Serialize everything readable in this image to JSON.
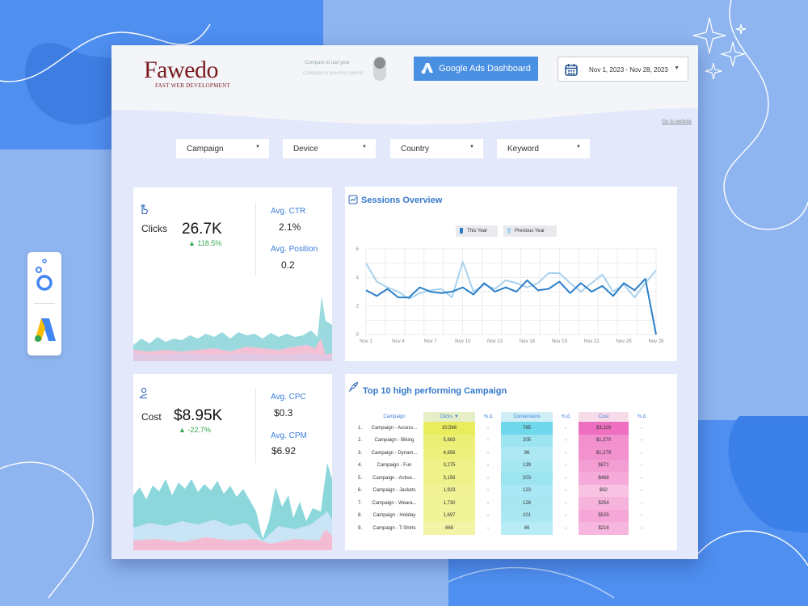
{
  "brand": {
    "name": "Fawedo",
    "tagline": "FAST WEB DEVELOPMENT"
  },
  "header": {
    "toggle_primary_label": "Compare to last year",
    "toggle_secondary_label": "Compare to previous period",
    "ads_button_label": "Google Ads Dashboard",
    "date_range": "Nov 1, 2023 - Nov 28, 2023",
    "go_to_website": "Go to website"
  },
  "filters": [
    {
      "label": "Campaign"
    },
    {
      "label": "Device"
    },
    {
      "label": "Country"
    },
    {
      "label": "Keyword"
    }
  ],
  "kpis": {
    "clicks": {
      "label": "Clicks",
      "value": "26.7K",
      "delta": "118.5%",
      "delta_direction": "up",
      "sub": [
        {
          "label": "Avg. CTR",
          "value": "2.1%"
        },
        {
          "label": "Avg. Position",
          "value": "0.2"
        }
      ]
    },
    "cost": {
      "label": "Cost",
      "value": "$8.95K",
      "delta": "-22.7%",
      "delta_direction": "up",
      "sub": [
        {
          "label": "Avg. CPC",
          "value": "$0.3"
        },
        {
          "label": "Avg. CPM",
          "value": "$6.92"
        }
      ]
    }
  },
  "colors": {
    "accent": "#4a90e2",
    "this_year": "#2b7fc9",
    "previous_year": "#a9d2ee",
    "positive": "#34a853",
    "teal_area": "#7fd3d8",
    "pink_area": "#f2b8cf"
  },
  "chart_data": {
    "type": "line",
    "title": "Sessions Overview",
    "xlabel": "",
    "ylabel": "",
    "ylim": [
      0,
      6
    ],
    "yticks": [
      "0",
      "2",
      "4",
      "6"
    ],
    "xtick_labels": [
      "Nov 1",
      "Nov 4",
      "Nov 7",
      "Nov 10",
      "Nov 13",
      "Nov 16",
      "Nov 19",
      "Nov 22",
      "Nov 25",
      "Nov 28"
    ],
    "x": [
      1,
      2,
      3,
      4,
      5,
      6,
      7,
      8,
      9,
      10,
      11,
      12,
      13,
      14,
      15,
      16,
      17,
      18,
      19,
      20,
      21,
      22,
      23,
      24,
      25,
      26,
      27,
      28
    ],
    "grid": true,
    "legend_position": "top",
    "series": [
      {
        "name": "This Year",
        "color": "#2b7fc9",
        "values": [
          3.1,
          2.7,
          3.2,
          2.6,
          2.6,
          3.3,
          3.0,
          2.9,
          3.0,
          3.3,
          2.8,
          3.6,
          3.0,
          3.3,
          3.0,
          3.8,
          3.1,
          3.2,
          3.7,
          2.9,
          3.6,
          3.0,
          3.4,
          2.7,
          3.6,
          3.1,
          3.9,
          0.0
        ]
      },
      {
        "name": "Previous Year",
        "color": "#a9d2ee",
        "values": [
          5.0,
          3.7,
          3.3,
          3.0,
          2.5,
          2.9,
          3.1,
          3.2,
          2.6,
          5.1,
          3.0,
          3.5,
          3.2,
          3.8,
          3.6,
          3.3,
          3.6,
          4.3,
          4.3,
          3.6,
          3.0,
          3.6,
          4.2,
          3.0,
          3.5,
          2.6,
          3.6,
          4.5
        ]
      }
    ]
  },
  "table": {
    "title": "Top 10 high performing Campaign",
    "headers": {
      "campaign": "Campaign",
      "clicks": "Clicks ▼",
      "pct1": "% Δ",
      "conversions": "Conversions",
      "pct2": "% Δ",
      "cost": "Cost",
      "pct3": "% Δ"
    },
    "rows": [
      {
        "n": "1.",
        "campaign": "Campaign - Access...",
        "clicks": "10,566",
        "p1": "-",
        "conversions": "765",
        "p2": "-",
        "cost": "$3,119",
        "p3": "-"
      },
      {
        "n": "2.",
        "campaign": "Campaign - Biking",
        "clicks": "5,883",
        "p1": "-",
        "conversions": "205",
        "p2": "-",
        "cost": "$1,370",
        "p3": "-"
      },
      {
        "n": "3.",
        "campaign": "Campaign - Dynam...",
        "clicks": "4,856",
        "p1": "-",
        "conversions": "96",
        "p2": "-",
        "cost": "$1,279",
        "p3": "-"
      },
      {
        "n": "4.",
        "campaign": "Campaign - Fun",
        "clicks": "3,275",
        "p1": "-",
        "conversions": "139",
        "p2": "-",
        "cost": "$871",
        "p3": "-"
      },
      {
        "n": "5.",
        "campaign": "Campaign - Active...",
        "clicks": "3,156",
        "p1": "-",
        "conversions": "203",
        "p2": "-",
        "cost": "$468",
        "p3": "-"
      },
      {
        "n": "6.",
        "campaign": "Campaign - Jackets",
        "clicks": "1,923",
        "p1": "-",
        "conversions": "123",
        "p2": "-",
        "cost": "$62",
        "p3": "-"
      },
      {
        "n": "7.",
        "campaign": "Campaign - Weara...",
        "clicks": "1,730",
        "p1": "-",
        "conversions": "128",
        "p2": "-",
        "cost": "$254",
        "p3": "-"
      },
      {
        "n": "8.",
        "campaign": "Campaign - Holiday",
        "clicks": "1,697",
        "p1": "-",
        "conversions": "101",
        "p2": "-",
        "cost": "$525",
        "p3": "-"
      },
      {
        "n": "9.",
        "campaign": "Campaign - T-Shirts",
        "clicks": "868",
        "p1": "-",
        "conversions": "46",
        "p2": "-",
        "cost": "$216",
        "p3": "-"
      }
    ]
  }
}
